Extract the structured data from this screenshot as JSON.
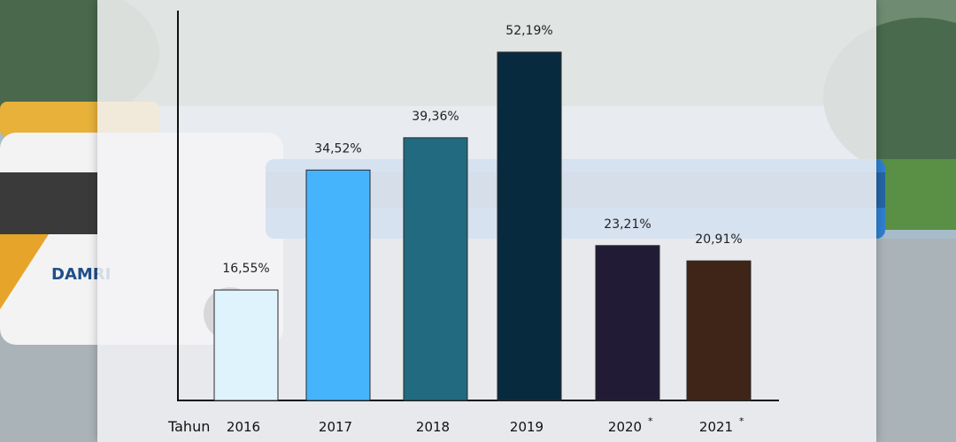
{
  "chart_data": {
    "type": "bar",
    "title": "",
    "xlabel": "Tahun",
    "ylabel": "",
    "ylim": [
      0,
      60
    ],
    "grid": false,
    "categories": [
      "2016",
      "2017",
      "2018",
      "2019",
      "2020",
      "2021"
    ],
    "category_markers": [
      "",
      "",
      "",
      "",
      "*",
      "*"
    ],
    "values": [
      16.55,
      34.52,
      39.36,
      52.19,
      23.21,
      20.91
    ],
    "value_labels": [
      "16,55%",
      "34,52%",
      "39,36%",
      "52,19%",
      "23,21%",
      "20,91%"
    ],
    "colors": [
      "#dff3fd",
      "#45b4fd",
      "#216a80",
      "#082a3f",
      "#221b35",
      "#3f2418"
    ],
    "background": {
      "brand_text": "DAMRI"
    }
  }
}
